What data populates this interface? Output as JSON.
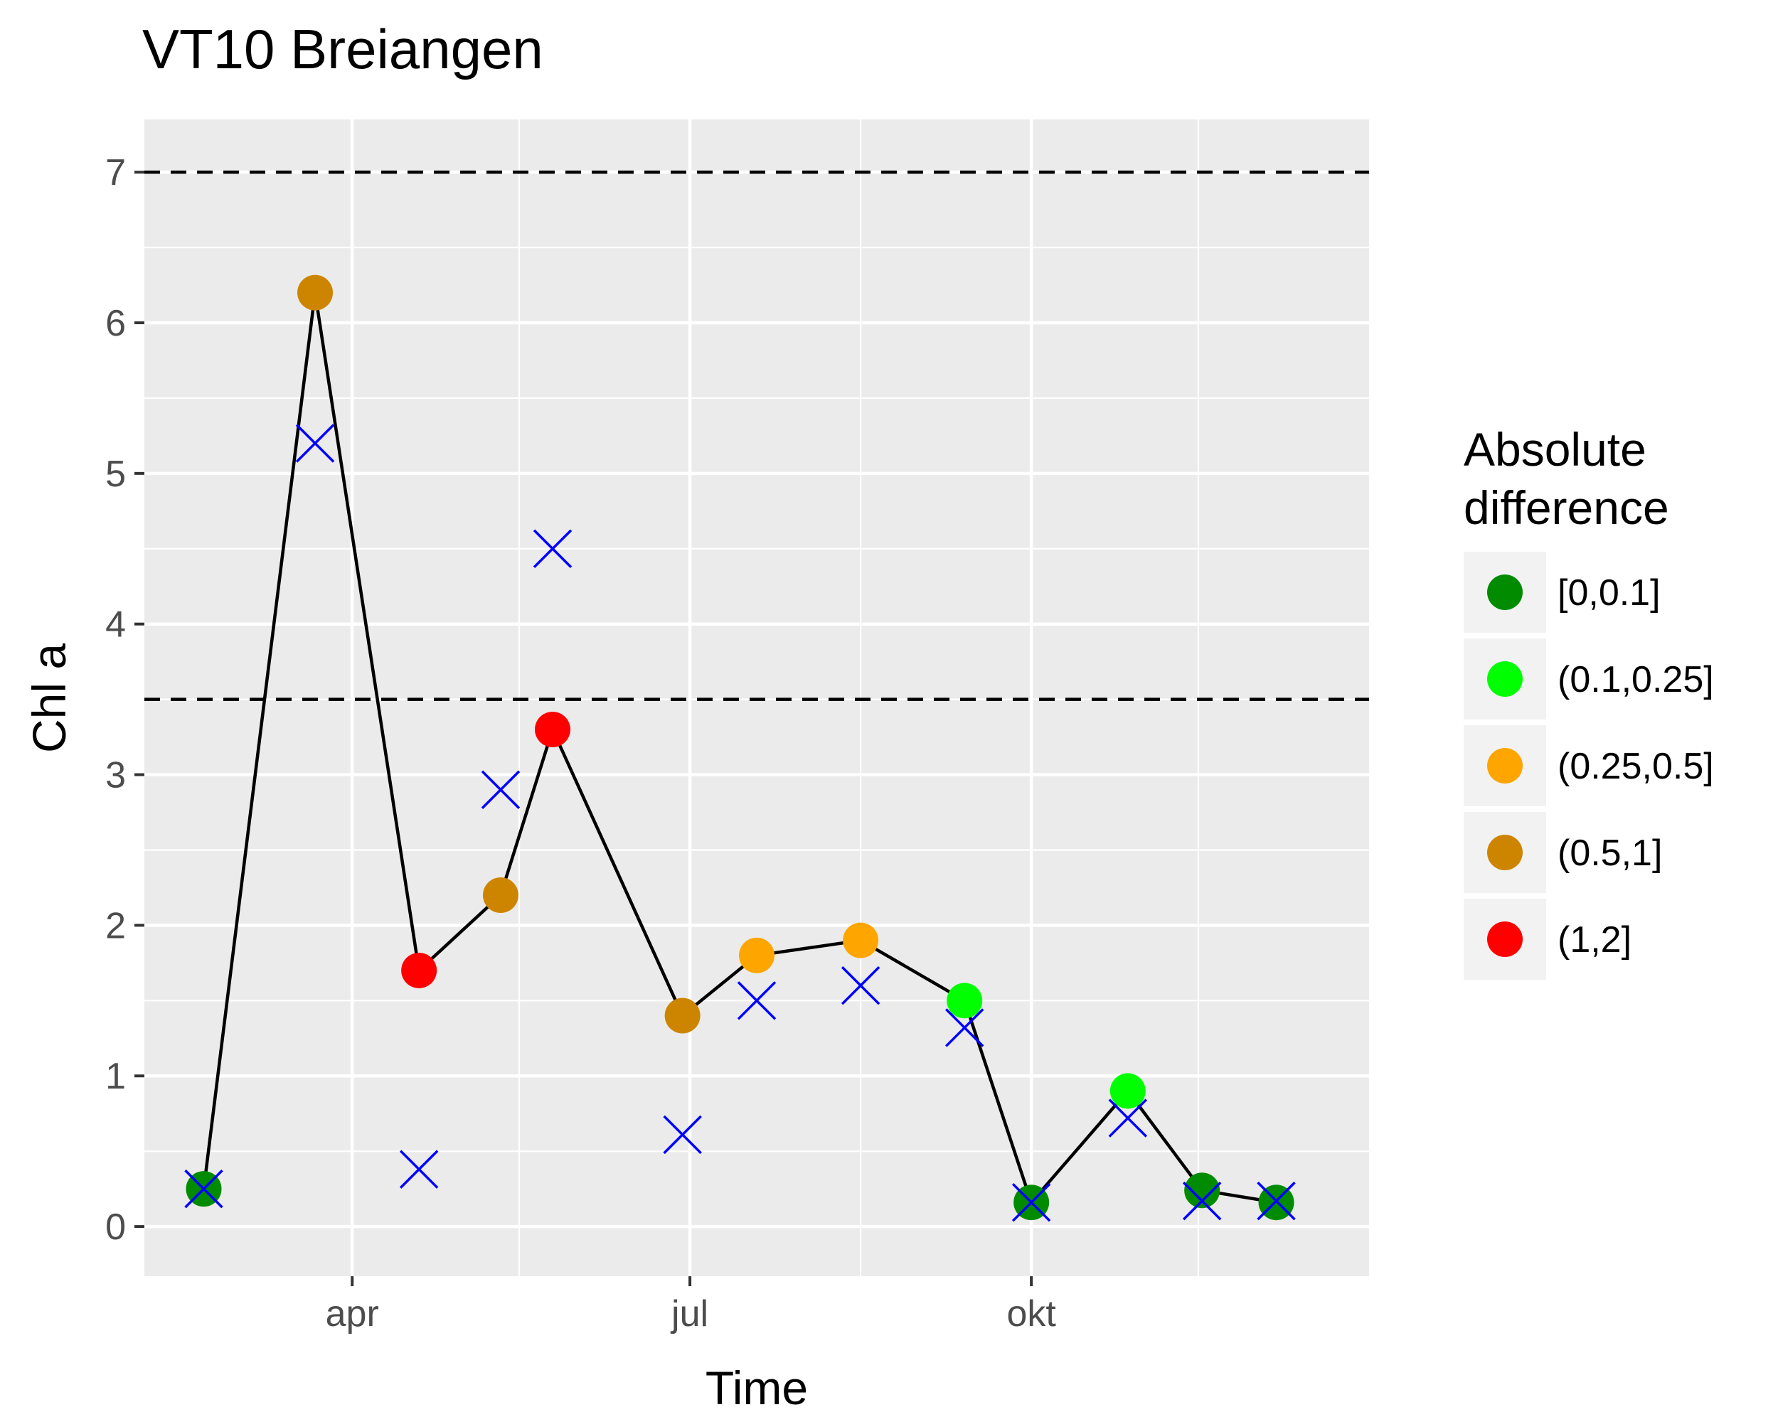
{
  "chart_data": {
    "type": "scatter",
    "title": "VT10 Breiangen",
    "xlabel": "Time",
    "ylabel": "Chl a",
    "x_ticks": [
      {
        "label": "apr",
        "date": "2017-04-01"
      },
      {
        "label": "jul",
        "date": "2017-07-01"
      },
      {
        "label": "okt",
        "date": "2017-10-01"
      }
    ],
    "x_range": [
      "2017-02-04",
      "2017-12-31"
    ],
    "y_ticks": [
      0,
      1,
      2,
      3,
      4,
      5,
      6,
      7
    ],
    "ylim": [
      -0.33,
      7.35
    ],
    "grid": true,
    "reference_lines": [
      {
        "y": 3.5,
        "style": "dashed"
      },
      {
        "y": 7,
        "style": "dashed"
      }
    ],
    "legend": {
      "title": "Absolute\ndifference",
      "position": "right",
      "items": [
        {
          "label": "[0,0.1]",
          "color": "#008B00"
        },
        {
          "label": "(0.1,0.25]",
          "color": "#00FF00"
        },
        {
          "label": "(0.25,0.5]",
          "color": "#FFA500"
        },
        {
          "label": "(0.5,1]",
          "color": "#CD8500"
        },
        {
          "label": "(1,2]",
          "color": "#FF0000"
        }
      ]
    },
    "series": [
      {
        "kind": "observed",
        "marker": "circle-with-line",
        "points": [
          {
            "date": "2017-02-20",
            "value": 0.25,
            "class": "[0,0.1]"
          },
          {
            "date": "2017-03-22",
            "value": 6.2,
            "class": "(0.5,1]"
          },
          {
            "date": "2017-04-19",
            "value": 1.7,
            "class": "(1,2]"
          },
          {
            "date": "2017-05-11",
            "value": 2.2,
            "class": "(0.5,1]"
          },
          {
            "date": "2017-05-25",
            "value": 3.3,
            "class": "(1,2]"
          },
          {
            "date": "2017-06-29",
            "value": 1.4,
            "class": "(0.5,1]"
          },
          {
            "date": "2017-07-19",
            "value": 1.8,
            "class": "(0.25,0.5]"
          },
          {
            "date": "2017-08-16",
            "value": 1.9,
            "class": "(0.25,0.5]"
          },
          {
            "date": "2017-09-13",
            "value": 1.5,
            "class": "(0.1,0.25]"
          },
          {
            "date": "2017-10-01",
            "value": 0.16,
            "class": "[0,0.1]"
          },
          {
            "date": "2017-10-27",
            "value": 0.9,
            "class": "(0.1,0.25]"
          },
          {
            "date": "2017-11-16",
            "value": 0.24,
            "class": "[0,0.1]"
          },
          {
            "date": "2017-12-06",
            "value": 0.16,
            "class": "[0,0.1]"
          }
        ]
      },
      {
        "kind": "comparison",
        "marker": "x",
        "color": "#0000FF",
        "points": [
          {
            "date": "2017-02-20",
            "value": 0.25
          },
          {
            "date": "2017-03-22",
            "value": 5.2
          },
          {
            "date": "2017-04-19",
            "value": 0.38
          },
          {
            "date": "2017-05-11",
            "value": 2.9
          },
          {
            "date": "2017-05-25",
            "value": 4.5
          },
          {
            "date": "2017-06-29",
            "value": 0.61
          },
          {
            "date": "2017-07-19",
            "value": 1.5
          },
          {
            "date": "2017-08-16",
            "value": 1.6
          },
          {
            "date": "2017-09-13",
            "value": 1.32
          },
          {
            "date": "2017-10-01",
            "value": 0.16
          },
          {
            "date": "2017-10-27",
            "value": 0.72
          },
          {
            "date": "2017-11-16",
            "value": 0.17
          },
          {
            "date": "2017-12-06",
            "value": 0.17
          }
        ]
      }
    ]
  }
}
